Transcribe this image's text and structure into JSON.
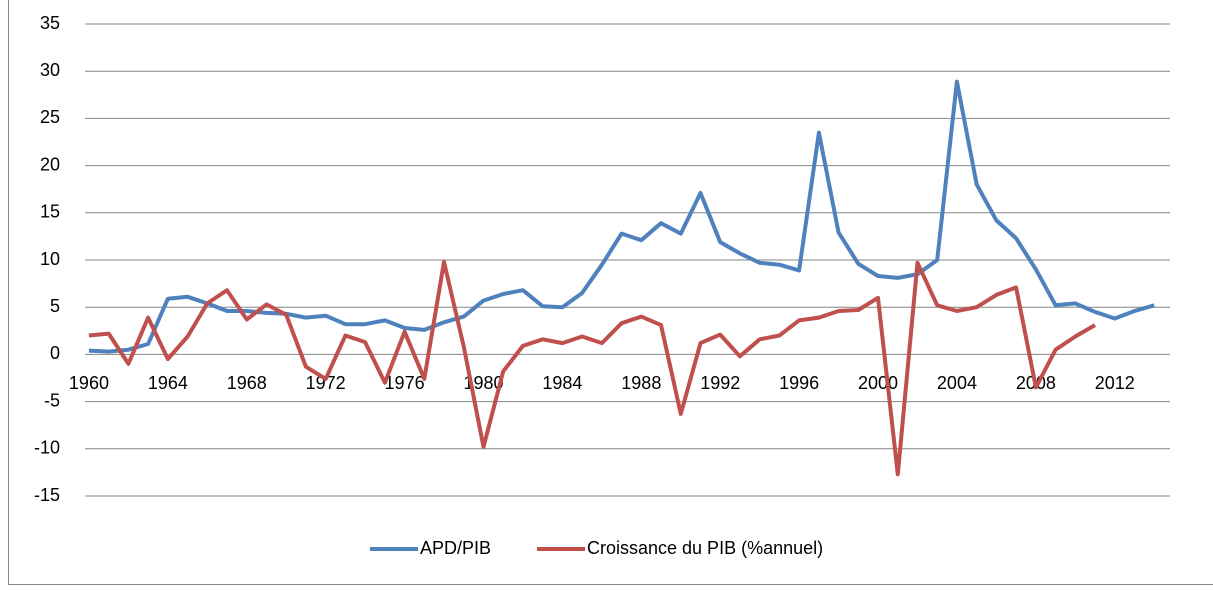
{
  "chart_data": {
    "type": "line",
    "categories": [
      "1960",
      null,
      null,
      null,
      "1964",
      null,
      null,
      null,
      "1968",
      null,
      null,
      null,
      "1972",
      null,
      null,
      null,
      "1976",
      null,
      null,
      null,
      "1980",
      null,
      null,
      null,
      "1984",
      null,
      null,
      null,
      "1988",
      null,
      null,
      null,
      "1992",
      null,
      null,
      null,
      "1996",
      null,
      null,
      null,
      "2000",
      null,
      null,
      null,
      "2004",
      null,
      null,
      null,
      "2008",
      null,
      null,
      null,
      "2012",
      null,
      null
    ],
    "series": [
      {
        "name": "APD/PIB",
        "color": "#4f81bd",
        "values": [
          0.4,
          0.3,
          0.5,
          1.1,
          5.9,
          6.1,
          5.4,
          4.6,
          4.6,
          4.4,
          4.3,
          3.9,
          4.1,
          3.2,
          3.2,
          3.6,
          2.8,
          2.6,
          3.4,
          4.0,
          5.7,
          6.4,
          6.8,
          5.1,
          5.0,
          6.5,
          9.5,
          12.8,
          12.1,
          13.9,
          12.8,
          17.1,
          11.9,
          10.7,
          9.7,
          9.5,
          8.9,
          23.5,
          12.9,
          9.6,
          8.3,
          8.1,
          8.5,
          10.0,
          28.9,
          18.0,
          14.2,
          12.3,
          9.0,
          5.2,
          5.4,
          4.5,
          3.8,
          4.6,
          5.2
        ]
      },
      {
        "name": "Croissance du PIB (%annuel)",
        "color": "#c0504d",
        "values": [
          2.0,
          2.2,
          -1.0,
          3.9,
          -0.5,
          1.9,
          5.4,
          6.8,
          3.7,
          5.3,
          4.2,
          -1.3,
          -2.6,
          2.0,
          1.3,
          -3.0,
          2.4,
          -2.6,
          9.8,
          0.8,
          -9.8,
          -1.8,
          0.9,
          1.6,
          1.2,
          1.9,
          1.2,
          3.3,
          4.0,
          3.1,
          -6.3,
          1.2,
          2.1,
          -0.2,
          1.6,
          2.0,
          3.6,
          3.9,
          4.6,
          4.7,
          6.0,
          -12.7,
          9.7,
          5.2,
          4.6,
          5.0,
          6.3,
          7.1,
          -3.5,
          0.5,
          1.9,
          3.1,
          null,
          null,
          null
        ]
      }
    ],
    "ylim": [
      -15,
      35
    ],
    "yticks": [
      -15,
      -10,
      -5,
      0,
      5,
      10,
      15,
      20,
      25,
      30,
      35
    ],
    "grid": true,
    "legend": "bottom"
  }
}
